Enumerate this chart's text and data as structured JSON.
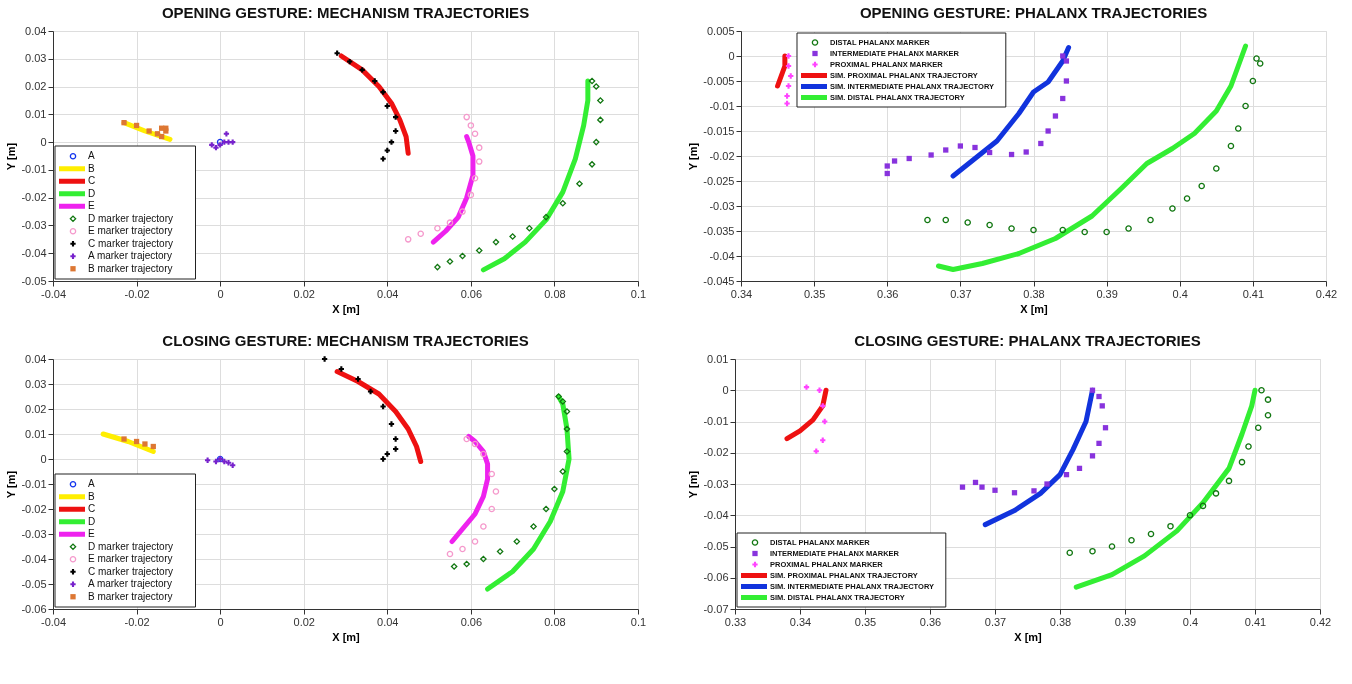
{
  "chart_data": [
    {
      "type": "line",
      "title": "OPENING GESTURE: MECHANISM TRAJECTORIES",
      "xlabel": "X [m]",
      "ylabel": "Y [m]",
      "xlim": [
        -0.04,
        0.1
      ],
      "xticks": [
        -0.04,
        -0.02,
        0,
        0.02,
        0.04,
        0.06,
        0.08,
        0.1
      ],
      "ylim": [
        -0.05,
        0.04
      ],
      "yticks": [
        -0.05,
        -0.04,
        -0.03,
        -0.02,
        -0.01,
        0,
        0.01,
        0.02,
        0.03,
        0.04
      ],
      "grid": true,
      "legend": "bottom left",
      "series": [
        {
          "name": "A",
          "type": "scatter",
          "marker": "circle",
          "color": "#1133ee",
          "x": [
            0
          ],
          "values": [
            0
          ]
        },
        {
          "name": "B",
          "type": "line",
          "color": "#ffee00",
          "x": [
            -0.023,
            -0.018,
            -0.012
          ],
          "values": [
            0.007,
            0.004,
            0.001
          ]
        },
        {
          "name": "C",
          "type": "line",
          "color": "#ee1111",
          "x": [
            0.029,
            0.034,
            0.038,
            0.041,
            0.043,
            0.0445,
            0.045
          ],
          "values": [
            0.031,
            0.026,
            0.02,
            0.014,
            0.008,
            0.002,
            -0.004
          ]
        },
        {
          "name": "D",
          "type": "line",
          "color": "#33ee33",
          "x": [
            0.063,
            0.068,
            0.073,
            0.078,
            0.082,
            0.085,
            0.087,
            0.088,
            0.088
          ],
          "values": [
            -0.046,
            -0.042,
            -0.036,
            -0.028,
            -0.018,
            -0.006,
            0.006,
            0.015,
            0.022
          ]
        },
        {
          "name": "E",
          "type": "line",
          "color": "#ee22ee",
          "x": [
            0.051,
            0.054,
            0.057,
            0.059,
            0.0605,
            0.0605,
            0.0595,
            0.059
          ],
          "values": [
            -0.036,
            -0.032,
            -0.027,
            -0.02,
            -0.012,
            -0.005,
            0.0,
            0.002
          ]
        },
        {
          "name": "D marker trajectory",
          "type": "scatter",
          "marker": "diamond",
          "color": "#117711",
          "x": [
            0.052,
            0.055,
            0.058,
            0.062,
            0.066,
            0.07,
            0.074,
            0.078,
            0.082,
            0.086,
            0.089,
            0.09,
            0.091,
            0.091,
            0.09,
            0.089
          ],
          "values": [
            -0.045,
            -0.043,
            -0.041,
            -0.039,
            -0.036,
            -0.034,
            -0.031,
            -0.027,
            -0.022,
            -0.015,
            -0.008,
            0.0,
            0.008,
            0.015,
            0.02,
            0.022
          ]
        },
        {
          "name": "E marker trajectory",
          "type": "scatter",
          "marker": "circle",
          "color": "#f599cc",
          "x": [
            0.045,
            0.048,
            0.052,
            0.055,
            0.058,
            0.06,
            0.061,
            0.062,
            0.062,
            0.061,
            0.06,
            0.059
          ],
          "values": [
            -0.035,
            -0.033,
            -0.031,
            -0.029,
            -0.025,
            -0.019,
            -0.013,
            -0.007,
            -0.002,
            0.003,
            0.006,
            0.009
          ]
        },
        {
          "name": "C marker trajectory",
          "type": "scatter",
          "marker": "cross",
          "color": "#000000",
          "x": [
            0.028,
            0.031,
            0.034,
            0.037,
            0.039,
            0.04,
            0.042,
            0.042,
            0.041,
            0.04,
            0.039
          ],
          "values": [
            0.032,
            0.029,
            0.026,
            0.022,
            0.018,
            0.013,
            0.009,
            0.004,
            0.0,
            -0.003,
            -0.006
          ]
        },
        {
          "name": "A marker trajectory",
          "type": "scatter",
          "marker": "cross",
          "color": "#7722cc",
          "x": [
            -0.002,
            -0.001,
            0,
            0.001,
            0.0015,
            0.002,
            0.003
          ],
          "values": [
            -0.001,
            -0.002,
            -0.001,
            0.0,
            0.003,
            0.0,
            0.0
          ]
        },
        {
          "name": "B marker trajectory",
          "type": "scatter",
          "marker": "square",
          "color": "#dd7733",
          "x": [
            -0.023,
            -0.02,
            -0.017,
            -0.015,
            -0.014,
            -0.014,
            -0.013,
            -0.013
          ],
          "values": [
            0.007,
            0.006,
            0.004,
            0.003,
            0.002,
            0.005,
            0.005,
            0.004
          ]
        }
      ]
    },
    {
      "type": "line",
      "title": "OPENING GESTURE: PHALANX TRAJECTORIES",
      "xlabel": "X [m]",
      "ylabel": "Y [m]",
      "xlim": [
        0.34,
        0.42
      ],
      "xticks": [
        0.34,
        0.35,
        0.36,
        0.37,
        0.38,
        0.39,
        0.4,
        0.41,
        0.42
      ],
      "ylim": [
        -0.045,
        0.005
      ],
      "yticks": [
        -0.045,
        -0.04,
        -0.035,
        -0.03,
        -0.025,
        -0.02,
        -0.015,
        -0.01,
        -0.005,
        0,
        0.005
      ],
      "grid": true,
      "legend": "top left",
      "series": [
        {
          "name": "DISTAL PHALANX MARKER",
          "type": "scatter",
          "marker": "circle",
          "color": "#117711",
          "x": [
            0.3655,
            0.368,
            0.371,
            0.374,
            0.377,
            0.38,
            0.384,
            0.387,
            0.39,
            0.393,
            0.396,
            0.399,
            0.401,
            0.403,
            0.405,
            0.407,
            0.408,
            0.409,
            0.41,
            0.4105,
            0.411
          ],
          "values": [
            -0.0328,
            -0.0328,
            -0.0333,
            -0.0338,
            -0.0345,
            -0.0348,
            -0.0348,
            -0.0352,
            -0.0352,
            -0.0345,
            -0.0328,
            -0.0305,
            -0.0285,
            -0.026,
            -0.0225,
            -0.018,
            -0.0145,
            -0.01,
            -0.005,
            -0.0005,
            -0.0015
          ]
        },
        {
          "name": "INTERMEDIATE PHALANX MARKER",
          "type": "scatter",
          "marker": "square",
          "color": "#8833dd",
          "x": [
            0.36,
            0.36,
            0.361,
            0.363,
            0.366,
            0.368,
            0.37,
            0.372,
            0.374,
            0.377,
            0.379,
            0.381,
            0.382,
            0.383,
            0.384,
            0.3845,
            0.3845,
            0.384
          ],
          "values": [
            -0.0235,
            -0.022,
            -0.021,
            -0.0205,
            -0.0198,
            -0.0188,
            -0.018,
            -0.0183,
            -0.0193,
            -0.0197,
            -0.0192,
            -0.0175,
            -0.015,
            -0.012,
            -0.0085,
            -0.005,
            -0.001,
            0.0
          ]
        },
        {
          "name": "PROXIMAL PHALANX MARKER",
          "type": "scatter",
          "marker": "cross",
          "color": "#ff44ff",
          "x": [
            0.3465,
            0.3465,
            0.3468,
            0.3465,
            0.3463,
            0.3463
          ],
          "values": [
            0.0,
            -0.002,
            -0.004,
            -0.006,
            -0.008,
            -0.0095
          ]
        },
        {
          "name": "SIM. PROXIMAL PHALANX TRAJECTORY",
          "type": "line",
          "color": "#ee1111",
          "x": [
            0.345,
            0.3455,
            0.346,
            0.346
          ],
          "values": [
            -0.006,
            -0.004,
            -0.002,
            0.0
          ]
        },
        {
          "name": "SIM. INTERMEDIATE PHALANX TRAJECTORY",
          "type": "line",
          "color": "#1133dd",
          "x": [
            0.369,
            0.372,
            0.375,
            0.378,
            0.38,
            0.382,
            0.384,
            0.3848
          ],
          "values": [
            -0.024,
            -0.0205,
            -0.017,
            -0.0115,
            -0.0072,
            -0.0052,
            -0.001,
            0.0017
          ]
        },
        {
          "name": "SIM. DISTAL PHALANX TRAJECTORY",
          "type": "line",
          "color": "#33ee33",
          "x": [
            0.367,
            0.369,
            0.373,
            0.378,
            0.383,
            0.388,
            0.392,
            0.3955,
            0.399,
            0.402,
            0.405,
            0.407,
            0.409
          ],
          "values": [
            -0.042,
            -0.0427,
            -0.0415,
            -0.0395,
            -0.0365,
            -0.032,
            -0.0265,
            -0.0215,
            -0.0185,
            -0.0155,
            -0.011,
            -0.006,
            0.002
          ]
        }
      ]
    },
    {
      "type": "line",
      "title": "CLOSING  GESTURE: MECHANISM TRAJECTORIES",
      "xlabel": "X [m]",
      "ylabel": "Y [m]",
      "xlim": [
        -0.04,
        0.1
      ],
      "xticks": [
        -0.04,
        -0.02,
        0,
        0.02,
        0.04,
        0.06,
        0.08,
        0.1
      ],
      "ylim": [
        -0.06,
        0.04
      ],
      "yticks": [
        -0.06,
        -0.05,
        -0.04,
        -0.03,
        -0.02,
        -0.01,
        0,
        0.01,
        0.02,
        0.03,
        0.04
      ],
      "grid": true,
      "legend": "bottom left",
      "series": [
        {
          "name": "A",
          "type": "scatter",
          "marker": "circle",
          "color": "#1133ee",
          "x": [
            0
          ],
          "values": [
            0
          ]
        },
        {
          "name": "B",
          "type": "line",
          "color": "#ffee00",
          "x": [
            -0.028,
            -0.022,
            -0.016
          ],
          "values": [
            0.01,
            0.007,
            0.003
          ]
        },
        {
          "name": "C",
          "type": "line",
          "color": "#ee1111",
          "x": [
            0.028,
            0.033,
            0.038,
            0.042,
            0.045,
            0.047,
            0.048
          ],
          "values": [
            0.035,
            0.031,
            0.026,
            0.019,
            0.012,
            0.005,
            -0.001
          ]
        },
        {
          "name": "D",
          "type": "line",
          "color": "#33ee33",
          "x": [
            0.064,
            0.07,
            0.075,
            0.079,
            0.082,
            0.0835,
            0.083,
            0.082,
            0.081
          ],
          "values": [
            -0.052,
            -0.045,
            -0.036,
            -0.025,
            -0.013,
            0.0,
            0.012,
            0.022,
            0.025
          ]
        },
        {
          "name": "E",
          "type": "line",
          "color": "#ee22ee",
          "x": [
            0.0555,
            0.058,
            0.061,
            0.063,
            0.064,
            0.064,
            0.063,
            0.061,
            0.0595
          ],
          "values": [
            -0.033,
            -0.028,
            -0.022,
            -0.015,
            -0.008,
            -0.002,
            0.003,
            0.007,
            0.009
          ]
        },
        {
          "name": "D marker trajectory",
          "type": "scatter",
          "marker": "diamond",
          "color": "#117711",
          "x": [
            0.056,
            0.059,
            0.063,
            0.067,
            0.071,
            0.075,
            0.078,
            0.08,
            0.082,
            0.083,
            0.083,
            0.083,
            0.082,
            0.081
          ],
          "values": [
            -0.043,
            -0.042,
            -0.04,
            -0.037,
            -0.033,
            -0.027,
            -0.02,
            -0.012,
            -0.005,
            0.003,
            0.012,
            0.019,
            0.023,
            0.025
          ]
        },
        {
          "name": "E marker trajectory",
          "type": "scatter",
          "marker": "circle",
          "color": "#f599cc",
          "x": [
            0.055,
            0.058,
            0.061,
            0.063,
            0.065,
            0.066,
            0.065,
            0.063,
            0.061,
            0.059
          ],
          "values": [
            -0.038,
            -0.036,
            -0.033,
            -0.027,
            -0.02,
            -0.013,
            -0.006,
            0.002,
            0.006,
            0.008
          ]
        },
        {
          "name": "C marker trajectory",
          "type": "scatter",
          "marker": "cross",
          "color": "#000000",
          "x": [
            0.025,
            0.029,
            0.033,
            0.036,
            0.039,
            0.041,
            0.042,
            0.042,
            0.04,
            0.039
          ],
          "values": [
            0.04,
            0.036,
            0.032,
            0.027,
            0.021,
            0.014,
            0.008,
            0.004,
            0.002,
            0.0
          ]
        },
        {
          "name": "A marker trajectory",
          "type": "scatter",
          "marker": "cross",
          "color": "#7722cc",
          "x": [
            -0.003,
            -0.001,
            0.0,
            0.001,
            0.002,
            0.003
          ],
          "values": [
            -0.0005,
            -0.001,
            0.0,
            -0.001,
            -0.0015,
            -0.0025
          ]
        },
        {
          "name": "B marker trajectory",
          "type": "scatter",
          "marker": "square",
          "color": "#dd7733",
          "x": [
            -0.023,
            -0.02,
            -0.018,
            -0.016
          ],
          "values": [
            0.008,
            0.007,
            0.006,
            0.005
          ]
        }
      ]
    },
    {
      "type": "line",
      "title": "CLOSING  GESTURE: PHALANX TRAJECTORIES",
      "xlabel": "X [m]",
      "ylabel": "Y [m]",
      "xlim": [
        0.33,
        0.42
      ],
      "xticks": [
        0.33,
        0.34,
        0.35,
        0.36,
        0.37,
        0.38,
        0.39,
        0.4,
        0.41,
        0.42
      ],
      "ylim": [
        -0.07,
        0.01
      ],
      "yticks": [
        -0.07,
        -0.06,
        -0.05,
        -0.04,
        -0.03,
        -0.02,
        -0.01,
        0,
        0.01
      ],
      "grid": true,
      "legend": "bottom left",
      "series": [
        {
          "name": "DISTAL PHALANX MARKER",
          "type": "scatter",
          "marker": "circle",
          "color": "#117711",
          "x": [
            0.3815,
            0.385,
            0.388,
            0.391,
            0.394,
            0.397,
            0.4,
            0.402,
            0.404,
            0.406,
            0.408,
            0.409,
            0.4105,
            0.412,
            0.412,
            0.411
          ],
          "values": [
            -0.052,
            -0.0515,
            -0.05,
            -0.048,
            -0.046,
            -0.0435,
            -0.04,
            -0.037,
            -0.033,
            -0.029,
            -0.023,
            -0.018,
            -0.012,
            -0.008,
            -0.003,
            0.0
          ]
        },
        {
          "name": "INTERMEDIATE PHALANX MARKER",
          "type": "scatter",
          "marker": "square",
          "color": "#8833dd",
          "x": [
            0.365,
            0.367,
            0.368,
            0.37,
            0.373,
            0.376,
            0.378,
            0.381,
            0.383,
            0.385,
            0.386,
            0.387,
            0.3865,
            0.386,
            0.385
          ],
          "values": [
            -0.031,
            -0.0295,
            -0.031,
            -0.032,
            -0.0328,
            -0.0322,
            -0.03,
            -0.027,
            -0.025,
            -0.021,
            -0.017,
            -0.012,
            -0.005,
            -0.002,
            0.0
          ]
        },
        {
          "name": "PROXIMAL PHALANX MARKER",
          "type": "scatter",
          "marker": "cross",
          "color": "#ff44ff",
          "x": [
            0.341,
            0.343,
            0.3435,
            0.3438,
            0.3435,
            0.3425
          ],
          "values": [
            0.001,
            0.0,
            -0.005,
            -0.01,
            -0.016,
            -0.0195
          ]
        },
        {
          "name": "SIM. PROXIMAL PHALANX TRAJECTORY",
          "type": "line",
          "color": "#ee1111",
          "x": [
            0.338,
            0.34,
            0.342,
            0.3435,
            0.344
          ],
          "values": [
            -0.0155,
            -0.013,
            -0.0095,
            -0.005,
            0.0
          ]
        },
        {
          "name": "SIM. INTERMEDIATE PHALANX TRAJECTORY",
          "type": "line",
          "color": "#1133dd",
          "x": [
            0.3685,
            0.373,
            0.377,
            0.38,
            0.382,
            0.384,
            0.385
          ],
          "values": [
            -0.043,
            -0.0385,
            -0.033,
            -0.027,
            -0.019,
            -0.01,
            0.0
          ]
        },
        {
          "name": "SIM. DISTAL PHALANX TRAJECTORY",
          "type": "line",
          "color": "#33ee33",
          "x": [
            0.3825,
            0.388,
            0.393,
            0.398,
            0.402,
            0.406,
            0.408,
            0.4095,
            0.41
          ],
          "values": [
            -0.063,
            -0.059,
            -0.053,
            -0.045,
            -0.036,
            -0.025,
            -0.014,
            -0.005,
            0.0
          ]
        }
      ]
    }
  ]
}
